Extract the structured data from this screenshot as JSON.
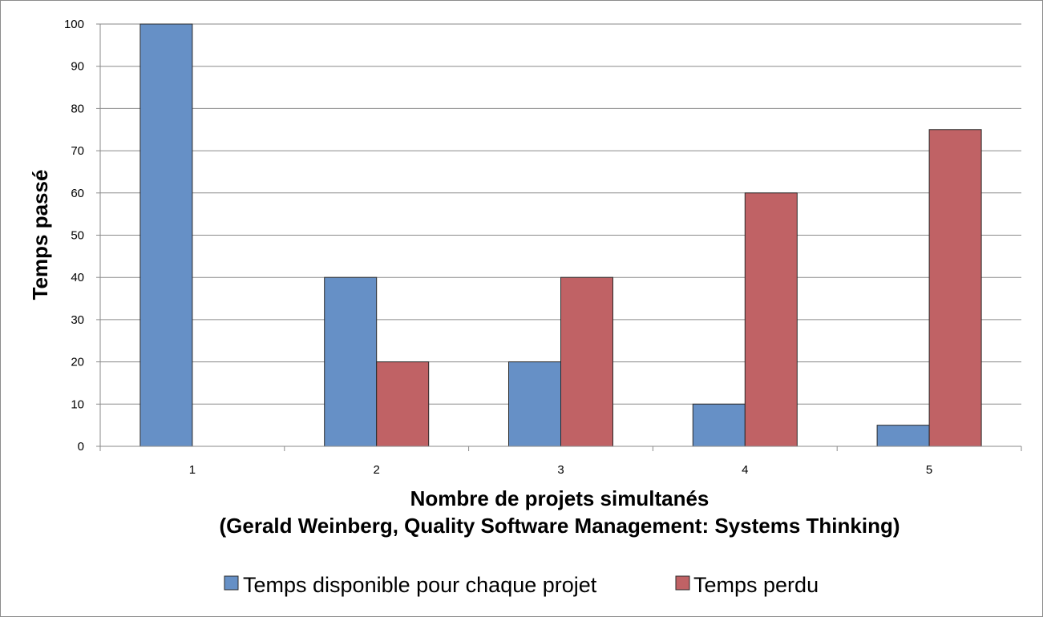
{
  "chart_data": {
    "type": "bar",
    "categories": [
      "1",
      "2",
      "3",
      "4",
      "5"
    ],
    "series": [
      {
        "name": "Temps disponible pour chaque projet",
        "values": [
          100,
          40,
          20,
          10,
          5
        ],
        "color": "#6690c6"
      },
      {
        "name": "Temps perdu",
        "values": [
          0,
          20,
          40,
          60,
          75
        ],
        "color": "#c06265"
      }
    ],
    "xlabel": "Nombre de projets simultanés",
    "xlabel_line2": "(Gerald Weinberg, Quality Software Management: Systems Thinking)",
    "ylabel": "Temps passé",
    "ylim": [
      0,
      100
    ],
    "yticks": [
      0,
      10,
      20,
      30,
      40,
      50,
      60,
      70,
      80,
      90,
      100
    ],
    "grid": true,
    "legend_position": "bottom"
  }
}
